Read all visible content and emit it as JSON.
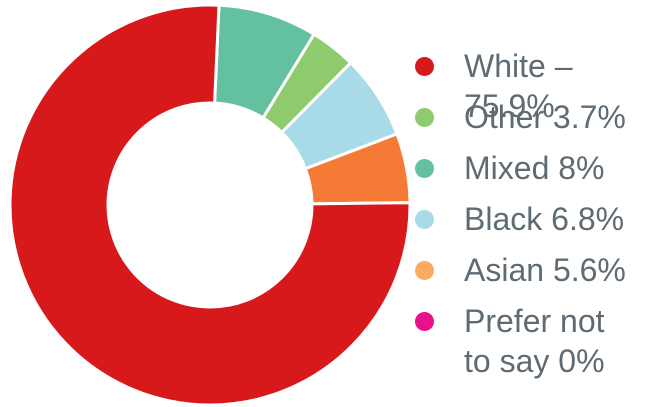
{
  "chart_data": {
    "type": "pie",
    "title": "",
    "categories": [
      "White",
      "Other",
      "Mixed",
      "Black",
      "Asian",
      "Prefer not to say"
    ],
    "values": [
      75.9,
      3.7,
      8,
      6.8,
      5.6,
      0
    ],
    "slice_order": [
      "White",
      "Mixed",
      "Other",
      "Black",
      "Asian",
      "Prefer not to say"
    ],
    "colors": {
      "White": "#d7191c",
      "Other": "#8ecb6c",
      "Mixed": "#63c1a0",
      "Black": "#a8dae8",
      "Asian": "#fbab60",
      "Prefer not to say": "#ea0f8d"
    },
    "slice_colors": {
      "White": "#d7191c",
      "Mixed": "#63c1a0",
      "Other": "#8ecb6c",
      "Black": "#a8dae8",
      "Asian": "#f47a35",
      "Prefer not to say": "#ea0f8d"
    },
    "legend": [
      {
        "label": "White – 75.9%",
        "color": "#d7191c"
      },
      {
        "label": "Other 3.7%",
        "color": "#8ecb6c"
      },
      {
        "label": "Mixed 8%",
        "color": "#63c1a0"
      },
      {
        "label": "Black 6.8%",
        "color": "#a8dae8"
      },
      {
        "label": "Asian 5.6%",
        "color": "#fbab60"
      },
      {
        "label": "Prefer not\nto say 0%",
        "color": "#ea0f8d"
      }
    ],
    "legend_position": "right",
    "donut": true
  }
}
